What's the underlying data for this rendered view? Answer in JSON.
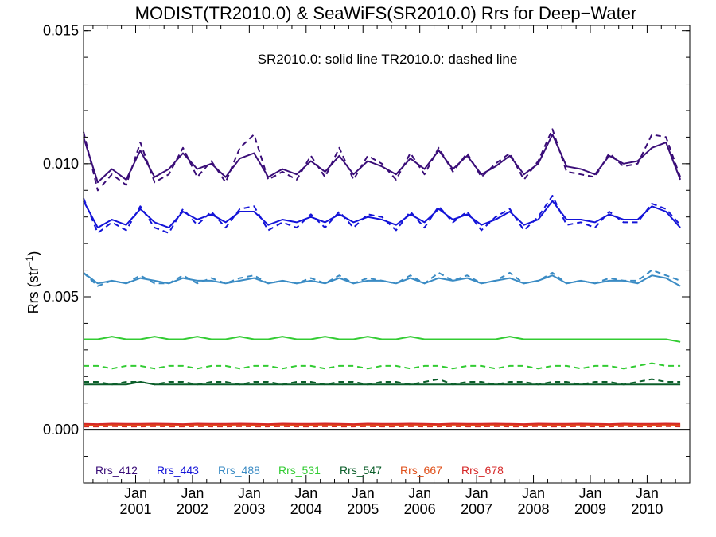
{
  "chart_data": {
    "type": "line",
    "title": "MODIST(TR2010.0) & SeaWiFS(SR2010.0)  Rrs for Deep−Water",
    "annotation": "SR2010.0: solid line   TR2010.0: dashed line",
    "ylabel_main": "Rrs (str",
    "ylabel_sup": "−1",
    "ylabel_end": ")",
    "xlim": [
      "2000-02",
      "2010-10"
    ],
    "ylim": [
      -0.002,
      0.0152
    ],
    "yticks": [
      {
        "value": 0.0,
        "label": "0.000"
      },
      {
        "value": 0.005,
        "label": "0.005"
      },
      {
        "value": 0.01,
        "label": "0.010"
      },
      {
        "value": 0.015,
        "label": "0.015"
      }
    ],
    "xticks": [
      {
        "month": "Jan",
        "year": "2001",
        "date": "2001-01"
      },
      {
        "month": "Jan",
        "year": "2002",
        "date": "2002-01"
      },
      {
        "month": "Jan",
        "year": "2003",
        "date": "2003-01"
      },
      {
        "month": "Jan",
        "year": "2004",
        "date": "2004-01"
      },
      {
        "month": "Jan",
        "year": "2005",
        "date": "2005-01"
      },
      {
        "month": "Jan",
        "year": "2006",
        "date": "2006-01"
      },
      {
        "month": "Jan",
        "year": "2007",
        "date": "2007-01"
      },
      {
        "month": "Jan",
        "year": "2008",
        "date": "2008-01"
      },
      {
        "month": "Jan",
        "year": "2009",
        "date": "2009-01"
      },
      {
        "month": "Jan",
        "year": "2010",
        "date": "2010-01"
      }
    ],
    "zero_line": 0.0,
    "x": [
      "2000-02",
      "2000-05",
      "2000-08",
      "2000-11",
      "2001-02",
      "2001-05",
      "2001-08",
      "2001-11",
      "2002-02",
      "2002-05",
      "2002-08",
      "2002-11",
      "2003-02",
      "2003-05",
      "2003-08",
      "2003-11",
      "2004-02",
      "2004-05",
      "2004-08",
      "2004-11",
      "2005-02",
      "2005-05",
      "2005-08",
      "2005-11",
      "2006-02",
      "2006-05",
      "2006-08",
      "2006-11",
      "2007-02",
      "2007-05",
      "2007-08",
      "2007-11",
      "2008-02",
      "2008-05",
      "2008-08",
      "2008-11",
      "2009-02",
      "2009-05",
      "2009-08",
      "2009-11",
      "2010-02",
      "2010-05",
      "2010-08"
    ],
    "series": [
      {
        "name": "Rrs_412",
        "color": "#3a0d78",
        "solid": [
          0.011,
          0.0093,
          0.0098,
          0.0094,
          0.0105,
          0.0095,
          0.0098,
          0.0104,
          0.0098,
          0.01,
          0.0095,
          0.0102,
          0.0104,
          0.0095,
          0.0098,
          0.0096,
          0.0101,
          0.0097,
          0.0103,
          0.0096,
          0.0101,
          0.0099,
          0.0096,
          0.0102,
          0.0098,
          0.0105,
          0.0098,
          0.0103,
          0.0096,
          0.0099,
          0.0103,
          0.0096,
          0.01,
          0.0111,
          0.0099,
          0.0098,
          0.0096,
          0.0103,
          0.01,
          0.0101,
          0.0106,
          0.0108,
          0.0094
        ],
        "dashed": [
          0.0112,
          0.009,
          0.0096,
          0.0092,
          0.0108,
          0.0093,
          0.0096,
          0.0106,
          0.0095,
          0.0101,
          0.0093,
          0.0106,
          0.0111,
          0.0094,
          0.0097,
          0.0094,
          0.0103,
          0.0095,
          0.0106,
          0.0094,
          0.0103,
          0.01,
          0.0094,
          0.0104,
          0.0096,
          0.0106,
          0.0097,
          0.0104,
          0.0095,
          0.01,
          0.0104,
          0.0094,
          0.0101,
          0.0113,
          0.0097,
          0.0096,
          0.0095,
          0.0104,
          0.0099,
          0.01,
          0.0111,
          0.011,
          0.0095
        ]
      },
      {
        "name": "Rrs_443",
        "color": "#1414d8",
        "solid": [
          0.0086,
          0.0076,
          0.0079,
          0.0077,
          0.0083,
          0.0078,
          0.0076,
          0.0082,
          0.0079,
          0.0081,
          0.0078,
          0.0082,
          0.0082,
          0.0077,
          0.0079,
          0.0078,
          0.008,
          0.0078,
          0.0081,
          0.0078,
          0.008,
          0.0079,
          0.0077,
          0.0081,
          0.0078,
          0.0083,
          0.0079,
          0.0081,
          0.0077,
          0.0079,
          0.0082,
          0.0077,
          0.0079,
          0.0086,
          0.0079,
          0.0079,
          0.0078,
          0.0081,
          0.0079,
          0.0079,
          0.0084,
          0.0082,
          0.0076
        ],
        "dashed": [
          0.0087,
          0.0074,
          0.0078,
          0.0075,
          0.0084,
          0.0076,
          0.0074,
          0.0083,
          0.0077,
          0.0082,
          0.0076,
          0.0083,
          0.0084,
          0.0075,
          0.0078,
          0.0076,
          0.0081,
          0.0076,
          0.0082,
          0.0076,
          0.0081,
          0.008,
          0.0075,
          0.0082,
          0.0076,
          0.0084,
          0.0078,
          0.0082,
          0.0075,
          0.008,
          0.0083,
          0.0075,
          0.008,
          0.0088,
          0.0077,
          0.0078,
          0.0076,
          0.0082,
          0.0078,
          0.0078,
          0.0085,
          0.0083,
          0.0077
        ]
      },
      {
        "name": "Rrs_488",
        "color": "#3a8bc4",
        "solid": [
          0.0059,
          0.0055,
          0.0056,
          0.0055,
          0.0057,
          0.0056,
          0.0055,
          0.0057,
          0.0056,
          0.0056,
          0.0055,
          0.0056,
          0.0057,
          0.0055,
          0.0056,
          0.0055,
          0.0056,
          0.0055,
          0.0057,
          0.0055,
          0.0056,
          0.0056,
          0.0055,
          0.0057,
          0.0055,
          0.0057,
          0.0056,
          0.0057,
          0.0055,
          0.0056,
          0.0057,
          0.0055,
          0.0056,
          0.0058,
          0.0055,
          0.0056,
          0.0055,
          0.0056,
          0.0056,
          0.0055,
          0.0058,
          0.0057,
          0.0054
        ],
        "dashed": [
          0.0059,
          0.0054,
          0.0056,
          0.0055,
          0.0058,
          0.0055,
          0.0055,
          0.0058,
          0.0055,
          0.0057,
          0.0055,
          0.0057,
          0.0058,
          0.0055,
          0.0056,
          0.0055,
          0.0057,
          0.0055,
          0.0058,
          0.0055,
          0.0057,
          0.0056,
          0.0055,
          0.0058,
          0.0055,
          0.0059,
          0.0056,
          0.0058,
          0.0055,
          0.0056,
          0.0059,
          0.0055,
          0.0056,
          0.0059,
          0.0055,
          0.0056,
          0.0055,
          0.0057,
          0.0056,
          0.0056,
          0.006,
          0.0058,
          0.0056
        ]
      },
      {
        "name": "Rrs_531",
        "color": "#33cc33",
        "solid": [
          0.0034,
          0.0034,
          0.0035,
          0.0034,
          0.0034,
          0.0035,
          0.0034,
          0.0034,
          0.0035,
          0.0034,
          0.0034,
          0.0035,
          0.0034,
          0.0034,
          0.0035,
          0.0034,
          0.0034,
          0.0035,
          0.0034,
          0.0034,
          0.0035,
          0.0034,
          0.0034,
          0.0035,
          0.0034,
          0.0034,
          0.0034,
          0.0034,
          0.0034,
          0.0034,
          0.0035,
          0.0034,
          0.0034,
          0.0034,
          0.0034,
          0.0034,
          0.0034,
          0.0034,
          0.0034,
          0.0034,
          0.0034,
          0.0034,
          0.0033
        ],
        "dashed": [
          0.0024,
          0.0024,
          0.0023,
          0.0024,
          0.0024,
          0.0023,
          0.0024,
          0.0024,
          0.0023,
          0.0024,
          0.0024,
          0.0023,
          0.0024,
          0.0024,
          0.0023,
          0.0024,
          0.0024,
          0.0023,
          0.0024,
          0.0024,
          0.0023,
          0.0024,
          0.0024,
          0.0023,
          0.0024,
          0.0024,
          0.0023,
          0.0024,
          0.0024,
          0.0023,
          0.0024,
          0.0024,
          0.0023,
          0.0024,
          0.0024,
          0.0023,
          0.0024,
          0.0024,
          0.0023,
          0.0024,
          0.0025,
          0.0024,
          0.0024
        ]
      },
      {
        "name": "Rrs_547",
        "color": "#0b5e2a",
        "solid": [
          0.0017,
          0.0017,
          0.0017,
          0.0017,
          0.0018,
          0.0017,
          0.0017,
          0.0017,
          0.0017,
          0.0017,
          0.0017,
          0.0017,
          0.0017,
          0.0017,
          0.0017,
          0.0017,
          0.0017,
          0.0017,
          0.0017,
          0.0017,
          0.0017,
          0.0017,
          0.0017,
          0.0017,
          0.0017,
          0.0017,
          0.0017,
          0.0017,
          0.0017,
          0.0017,
          0.0017,
          0.0017,
          0.0017,
          0.0017,
          0.0017,
          0.0017,
          0.0017,
          0.0017,
          0.0017,
          0.0017,
          0.0017,
          0.0017,
          0.0017
        ],
        "dashed": [
          0.0018,
          0.0018,
          0.0017,
          0.0018,
          0.0018,
          0.0017,
          0.0018,
          0.0018,
          0.0017,
          0.0018,
          0.0018,
          0.0017,
          0.0018,
          0.0018,
          0.0017,
          0.0018,
          0.0018,
          0.0017,
          0.0018,
          0.0018,
          0.0017,
          0.0018,
          0.0018,
          0.0017,
          0.0018,
          0.0019,
          0.0017,
          0.0018,
          0.0018,
          0.0017,
          0.0018,
          0.0018,
          0.0017,
          0.0018,
          0.0018,
          0.0017,
          0.0018,
          0.0018,
          0.0017,
          0.0018,
          0.0019,
          0.0018,
          0.0018
        ]
      },
      {
        "name": "Rrs_667",
        "color": "#e0501a",
        "solid": [
          0.00018,
          0.00018,
          0.00019,
          0.00018,
          0.00018,
          0.00019,
          0.00018,
          0.00018,
          0.00019,
          0.00018,
          0.00018,
          0.00019,
          0.00018,
          0.00018,
          0.00019,
          0.00018,
          0.00018,
          0.00019,
          0.00018,
          0.00018,
          0.00019,
          0.00018,
          0.00018,
          0.00019,
          0.00018,
          0.00018,
          0.00019,
          0.00018,
          0.00018,
          0.00019,
          0.00018,
          0.00018,
          0.00019,
          0.00018,
          0.00018,
          0.00019,
          0.00018,
          0.00018,
          0.00019,
          0.00018,
          0.00018,
          0.00019,
          0.00018
        ],
        "dashed": [
          0.00015,
          0.00015,
          0.00016,
          0.00015,
          0.00015,
          0.00016,
          0.00015,
          0.00015,
          0.00016,
          0.00015,
          0.00015,
          0.00016,
          0.00015,
          0.00015,
          0.00016,
          0.00015,
          0.00015,
          0.00016,
          0.00015,
          0.00015,
          0.00016,
          0.00015,
          0.00015,
          0.00016,
          0.00015,
          0.00015,
          0.00016,
          0.00015,
          0.00015,
          0.00016,
          0.00015,
          0.00015,
          0.00016,
          0.00015,
          0.00015,
          0.00016,
          0.00015,
          0.00015,
          0.00016,
          0.00015,
          0.00015,
          0.00016,
          0.00015
        ]
      },
      {
        "name": "Rrs_678",
        "color": "#d62828",
        "solid": [
          0.00022,
          0.00021,
          0.00023,
          0.00022,
          0.00022,
          0.00023,
          0.00022,
          0.00021,
          0.00023,
          0.00022,
          0.00022,
          0.00023,
          0.00022,
          0.00021,
          0.00023,
          0.00022,
          0.00022,
          0.00023,
          0.00022,
          0.00021,
          0.00023,
          0.00022,
          0.00022,
          0.00023,
          0.00022,
          0.00021,
          0.00023,
          0.00022,
          0.00022,
          0.00023,
          0.00022,
          0.00021,
          0.00023,
          0.00022,
          0.00022,
          0.00023,
          0.00022,
          0.00021,
          0.00023,
          0.00022,
          0.00022,
          0.00023,
          0.00022
        ],
        "dashed": [
          0.00012,
          0.00012,
          0.00013,
          0.00012,
          0.00012,
          0.00013,
          0.00012,
          0.00012,
          0.00013,
          0.00012,
          0.00012,
          0.00013,
          0.00012,
          0.00012,
          0.00013,
          0.00012,
          0.00012,
          0.00013,
          0.00012,
          0.00012,
          0.00013,
          0.00012,
          0.00012,
          0.00013,
          0.00012,
          0.00012,
          0.00013,
          0.00012,
          0.00012,
          0.00013,
          0.00012,
          0.00012,
          0.00013,
          0.00012,
          0.00012,
          0.00013,
          0.00012,
          0.00012,
          0.00013,
          0.00012,
          0.00012,
          0.00013,
          0.00012
        ]
      }
    ]
  }
}
